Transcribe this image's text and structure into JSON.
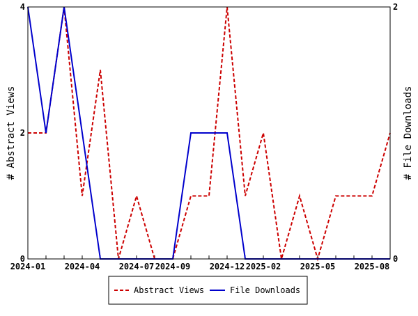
{
  "chart_data": {
    "type": "line",
    "x": [
      "2024-01",
      "2024-02",
      "2024-03",
      "2024-04",
      "2024-05",
      "2024-06",
      "2024-07",
      "2024-08",
      "2024-09",
      "2024-10",
      "2024-11",
      "2024-12",
      "2025-01",
      "2025-02",
      "2025-03",
      "2025-04",
      "2025-05",
      "2025-06",
      "2025-07",
      "2025-08",
      "2025-09"
    ],
    "x_ticks": [
      "2024-01",
      "2024-04",
      "2024-07",
      "2024-09",
      "2024-12",
      "2025-02",
      "2025-05",
      "2025-08"
    ],
    "series": [
      {
        "name": "Abstract Views",
        "axis": "left",
        "color": "#cc0000",
        "style": "dashed",
        "values": [
          2,
          2,
          4,
          1,
          3,
          0,
          1,
          0,
          0,
          1,
          1,
          4,
          1,
          2,
          0,
          1,
          0,
          1,
          1,
          1,
          2
        ]
      },
      {
        "name": "File Downloads",
        "axis": "right",
        "color": "#0000cc",
        "style": "solid",
        "values": [
          2,
          1,
          2,
          1,
          0,
          0,
          0,
          0,
          0,
          1,
          1,
          1,
          0,
          0,
          0,
          0,
          0,
          0,
          0,
          0,
          0
        ]
      }
    ],
    "ylabel": "# Abstract Views",
    "y2label": "# File Downloads",
    "ylim": [
      0,
      4
    ],
    "y2lim": [
      0,
      2
    ],
    "yticks": [
      0,
      2,
      4
    ],
    "y2ticks": [
      0,
      2
    ],
    "grid": false,
    "legend_position": "bottom-center"
  }
}
